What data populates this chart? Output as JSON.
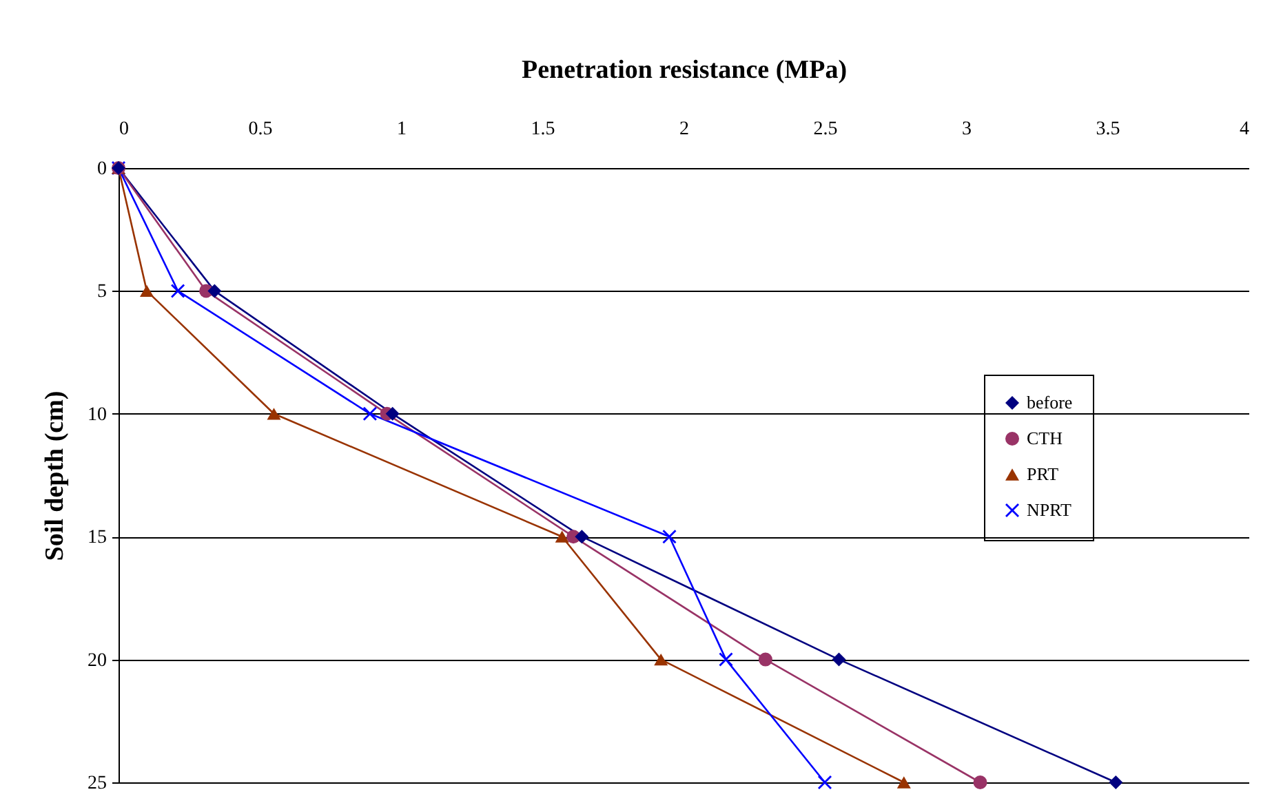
{
  "chart_data": {
    "type": "line",
    "xlabel": "Penetration resistance (MPa)",
    "ylabel": "Soil depth (cm)",
    "xlim": [
      0,
      4
    ],
    "xticks": [
      0,
      0.5,
      1,
      1.5,
      2,
      2.5,
      3,
      3.5,
      4
    ],
    "ylim": [
      25,
      0
    ],
    "yticks": [
      0,
      5,
      10,
      15,
      20,
      25
    ],
    "grid": "y",
    "legend": "right",
    "series": [
      {
        "name": "before",
        "color": "#000080",
        "marker": "diamond",
        "x": [
          0,
          0.34,
          0.97,
          1.64,
          2.55,
          3.53
        ],
        "values": [
          0,
          5,
          10,
          15,
          20,
          25
        ]
      },
      {
        "name": "CTH",
        "color": "#993366",
        "marker": "circle",
        "x": [
          0,
          0.31,
          0.95,
          1.61,
          2.29,
          3.05
        ],
        "values": [
          0,
          5,
          10,
          15,
          20,
          25
        ]
      },
      {
        "name": "PRT",
        "color": "#993300",
        "marker": "triangle",
        "x": [
          0,
          0.1,
          0.55,
          1.57,
          1.92,
          2.78
        ],
        "values": [
          0,
          5,
          10,
          15,
          20,
          25
        ]
      },
      {
        "name": "NPRT",
        "color": "#0000ff",
        "marker": "cross",
        "x": [
          0,
          0.21,
          0.89,
          1.95,
          2.15,
          2.5
        ],
        "values": [
          0,
          5,
          10,
          15,
          20,
          25
        ]
      }
    ]
  }
}
